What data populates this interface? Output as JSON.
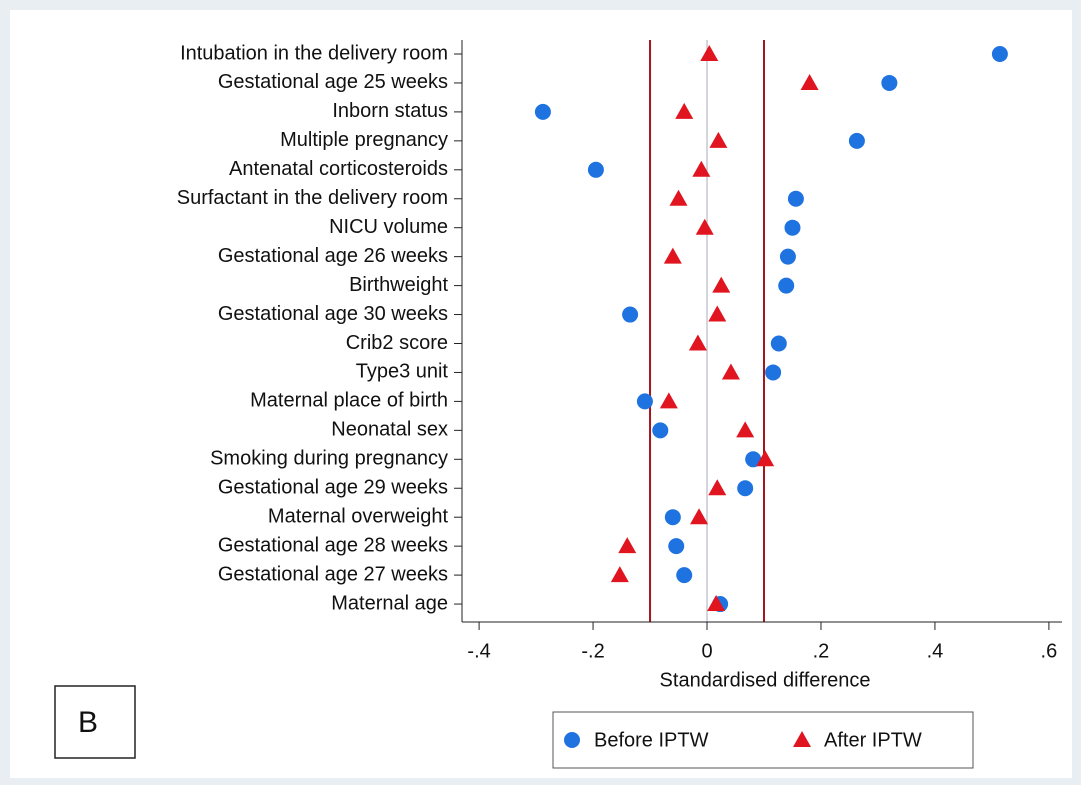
{
  "chart_data": {
    "type": "dot",
    "panel_label": "B",
    "x_label": "Standardised difference",
    "categories": [
      "Intubation in the delivery room",
      "Gestational age 25 weeks",
      "Inborn status",
      "Multiple pregnancy",
      "Antenatal corticosteroids",
      "Surfactant in the delivery room",
      "NICU volume",
      "Gestational age 26 weeks",
      "Birthweight",
      "Gestational age 30 weeks",
      "Crib2 score",
      "Type3 unit",
      "Maternal place of birth",
      "Neonatal sex",
      "Smoking during pregnancy",
      "Gestational age 29 weeks",
      "Maternal overweight",
      "Gestational age 28 weeks",
      "Gestational age 27 weeks",
      "Maternal age"
    ],
    "series": [
      {
        "name": "Before IPTW",
        "color": "#1f73e0",
        "marker": "circle",
        "values": [
          0.514,
          0.32,
          -0.288,
          0.263,
          -0.195,
          0.156,
          0.15,
          0.142,
          0.139,
          -0.135,
          0.126,
          0.116,
          -0.109,
          -0.082,
          0.081,
          0.067,
          -0.06,
          -0.054,
          -0.04,
          0.023
        ]
      },
      {
        "name": "After IPTW",
        "color": "#e0151f",
        "marker": "triangle",
        "values": [
          0.004,
          0.18,
          -0.04,
          0.02,
          -0.01,
          -0.05,
          -0.004,
          -0.06,
          0.025,
          0.018,
          -0.016,
          0.042,
          -0.067,
          0.067,
          0.102,
          0.018,
          -0.014,
          -0.14,
          -0.153,
          0.016
        ]
      }
    ],
    "xlim": [
      -0.43,
      0.623
    ],
    "xticks": [
      {
        "value": -0.4,
        "label": "-.4"
      },
      {
        "value": -0.2,
        "label": "-.2"
      },
      0,
      {
        "value": 0.2,
        "label": ".2"
      },
      {
        "value": 0.4,
        "label": ".4"
      },
      {
        "value": 0.6,
        "label": ".6"
      }
    ],
    "reference_lines": [
      -0.1,
      0.1
    ],
    "reference_color": "#a3161c",
    "zero_line": 0,
    "legend": "bottom"
  }
}
